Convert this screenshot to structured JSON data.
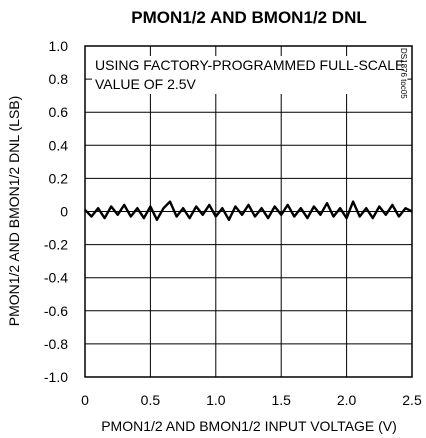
{
  "chart_data": {
    "type": "line",
    "title": "PMON1/2 AND BMON1/2 DNL",
    "xlabel": "PMON1/2 AND BMON1/2 INPUT VOLTAGE (V)",
    "ylabel": "PMON1/2 AND BMON1/2 DNL (LSB)",
    "xlim": [
      0,
      2.5
    ],
    "ylim": [
      -1.0,
      1.0
    ],
    "grid": true,
    "x_ticks": [
      0,
      0.5,
      1.0,
      1.5,
      2.0,
      2.5
    ],
    "x_tick_labels": [
      "0",
      "0.5",
      "1.0",
      "1.5",
      "2.0",
      "2.5"
    ],
    "y_ticks": [
      1.0,
      0.8,
      0.6,
      0.4,
      0.2,
      0,
      -0.2,
      -0.4,
      -0.6,
      -0.8,
      -1.0
    ],
    "y_tick_labels": [
      "1.0",
      "0.8",
      "0.6",
      "0.4",
      "0.2",
      "0",
      "-0.2",
      "-0.4",
      "-0.6",
      "-0.8",
      "-1.0"
    ],
    "annotation": {
      "line1": "USING FACTORY-PROGRAMMED FULL-SCALE",
      "line2": "VALUE OF 2.5V"
    },
    "figure_code": "DS1876 toc05",
    "series": [
      {
        "x": [
          0.0,
          0.05,
          0.1,
          0.15,
          0.2,
          0.25,
          0.3,
          0.35,
          0.4,
          0.45,
          0.5,
          0.55,
          0.6,
          0.65,
          0.7,
          0.75,
          0.8,
          0.85,
          0.9,
          0.95,
          1.0,
          1.05,
          1.1,
          1.15,
          1.2,
          1.25,
          1.3,
          1.35,
          1.4,
          1.45,
          1.5,
          1.55,
          1.6,
          1.65,
          1.7,
          1.75,
          1.8,
          1.85,
          1.9,
          1.95,
          2.0,
          2.05,
          2.1,
          2.15,
          2.2,
          2.25,
          2.3,
          2.35,
          2.4,
          2.45,
          2.5
        ],
        "values": [
          0.01,
          -0.03,
          0.02,
          -0.04,
          0.03,
          -0.02,
          0.04,
          -0.03,
          0.02,
          -0.04,
          0.03,
          -0.05,
          0.02,
          0.06,
          -0.03,
          0.02,
          -0.04,
          0.03,
          -0.02,
          0.04,
          -0.03,
          0.02,
          -0.05,
          0.03,
          -0.02,
          0.04,
          -0.03,
          0.02,
          -0.04,
          0.03,
          -0.02,
          0.04,
          -0.03,
          0.02,
          -0.04,
          0.03,
          -0.02,
          0.05,
          -0.03,
          0.02,
          -0.04,
          0.06,
          -0.03,
          0.02,
          -0.04,
          0.03,
          -0.02,
          0.04,
          -0.03,
          0.02,
          0.0
        ]
      }
    ]
  }
}
